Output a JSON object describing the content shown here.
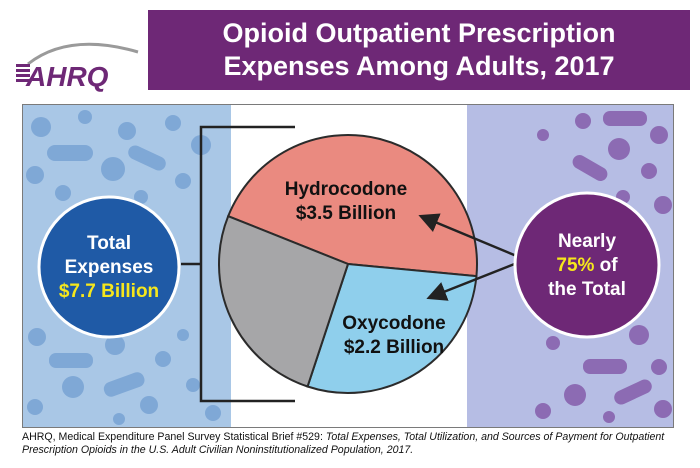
{
  "logo": {
    "text": "AHRQ"
  },
  "title": {
    "line1": "Opioid Outpatient Prescription",
    "line2": "Expenses Among Adults, 2017"
  },
  "colors": {
    "title_bg": "#6e2876",
    "hydrocodone": "#ea8a80",
    "oxycodone": "#8fcfec",
    "other": "#a6a6a8",
    "total_circle": "#1f5aa6",
    "share_circle": "#6e2876",
    "highlight_text": "#f6e71c",
    "left_band": "#a9c7e6",
    "right_band": "#b6bde4"
  },
  "chart_data": {
    "type": "pie",
    "unit": "billion USD",
    "total": 7.7,
    "slices": [
      {
        "name": "Hydrocodone",
        "value": 3.5,
        "label_line1": "Hydrocodone",
        "label_line2": "$3.5 Billion"
      },
      {
        "name": "Oxycodone",
        "value": 2.2,
        "label_line1": "Oxycodone",
        "label_line2": "$2.2 Billion"
      },
      {
        "name": "",
        "value": 2.0
      }
    ]
  },
  "total_callout": {
    "line1": "Total",
    "line2": "Expenses",
    "line3": "$7.7 Billion"
  },
  "share_callout": {
    "line1": "Nearly",
    "line2a": "75%",
    "line2b": " of",
    "line3": "the Total"
  },
  "source": {
    "prefix": "AHRQ, Medical Expenditure Panel Survey Statistical Brief #529: ",
    "title": "Total Expenses, Total Utilization, and Sources of Payment for Outpatient Prescription Opioids in the U.S. Adult Civilian Noninstitutionalized Population, 2017."
  }
}
